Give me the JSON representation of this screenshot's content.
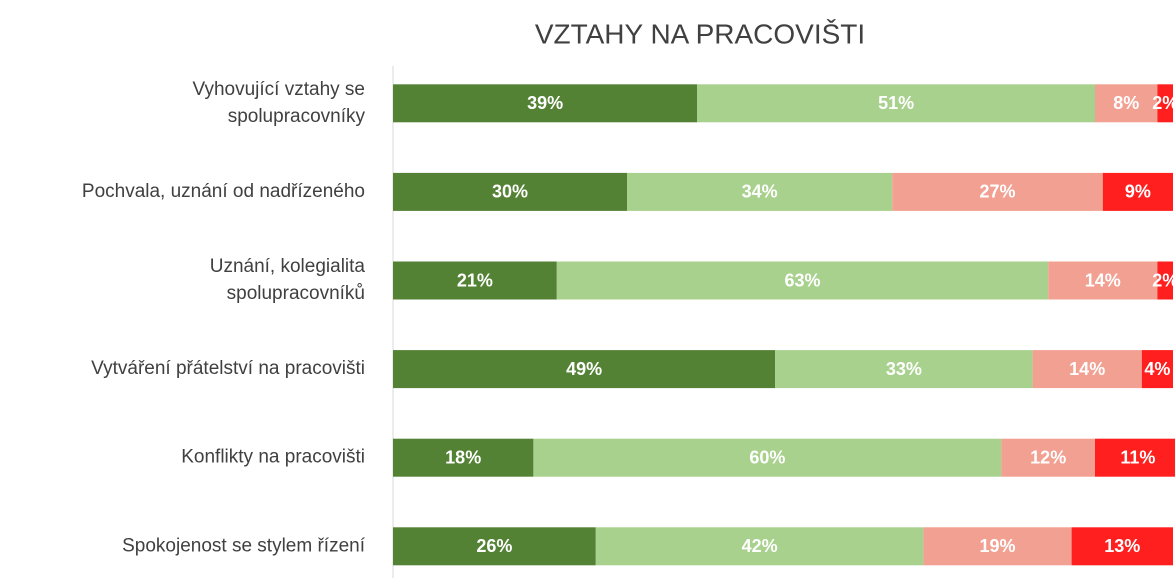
{
  "chart_data": {
    "type": "stacked_bar_horizontal",
    "title": "VZTAHY NA PRACOVIŠTI",
    "categories": [
      [
        "Vyhovující vztahy se",
        "spolupracovníky"
      ],
      [
        "Pochvala, uznání od nadřízeného"
      ],
      [
        "Uznání, kolegialita",
        "spolupracovníků"
      ],
      [
        "Vytváření přátelství na pracovišti"
      ],
      [
        "Konflikty na pracovišti"
      ],
      [
        "Spokojenost se stylem řízení"
      ]
    ],
    "xlim": [
      0,
      100
    ],
    "series": [
      {
        "color": "#548235",
        "values": [
          39,
          30,
          21,
          49,
          18,
          26
        ],
        "value_labels": [
          "39%",
          "30%",
          "21%",
          "49%",
          "18%",
          "26%"
        ]
      },
      {
        "color": "#a9d18e",
        "values": [
          51,
          34,
          63,
          33,
          60,
          42
        ],
        "value_labels": [
          "51%",
          "34%",
          "63%",
          "33%",
          "60%",
          "42%"
        ]
      },
      {
        "color": "#f2a092",
        "values": [
          8,
          27,
          14,
          14,
          12,
          19
        ],
        "value_labels": [
          "8%",
          "27%",
          "14%",
          "14%",
          "12%",
          "19%"
        ]
      },
      {
        "color": "#ff1f1f",
        "values": [
          2,
          9,
          2,
          4,
          11,
          13
        ],
        "value_labels": [
          "2%",
          "9%",
          "2%",
          "4%",
          "11%",
          "13%"
        ]
      }
    ]
  }
}
